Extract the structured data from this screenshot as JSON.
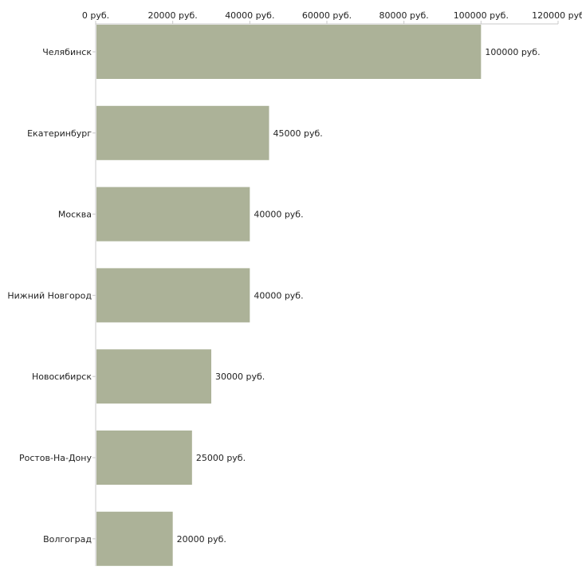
{
  "chart_data": {
    "type": "bar",
    "orientation": "horizontal",
    "title": "",
    "xlabel": "",
    "ylabel": "",
    "categories": [
      "Челябинск",
      "Екатеринбург",
      "Москва",
      "Нижний Новгород",
      "Новосибирск",
      "Ростов-На-Дону",
      "Волгоград"
    ],
    "values": [
      100000,
      45000,
      40000,
      40000,
      30000,
      25000,
      20000
    ],
    "value_labels": [
      "100000 руб.",
      "45000 руб.",
      "40000 руб.",
      "40000 руб.",
      "30000 руб.",
      "25000 руб.",
      "20000 руб."
    ],
    "xlim": [
      0,
      120000
    ],
    "x_ticks": [
      0,
      20000,
      40000,
      60000,
      80000,
      100000,
      120000
    ],
    "x_tick_labels": [
      "0 руб.",
      "20000 руб.",
      "40000 руб.",
      "60000 руб.",
      "80000 руб.",
      "100000 руб.",
      "120000 руб"
    ],
    "axis_position": "top",
    "grid": false,
    "legend": "none",
    "colors": {
      "bar": "#acb298",
      "axis": "#c8c8c8",
      "text": "#222222"
    }
  }
}
